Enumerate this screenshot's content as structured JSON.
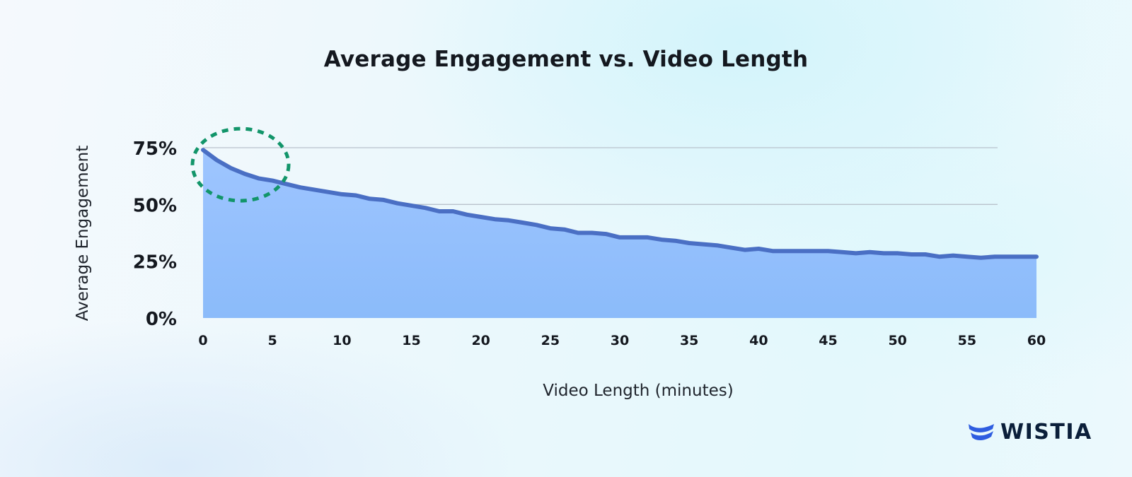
{
  "chart_data": {
    "type": "area",
    "title": "Average Engagement vs. Video Length",
    "xlabel": "Video Length (minutes)",
    "ylabel": "Average Engagement",
    "xlim": [
      0,
      60
    ],
    "ylim": [
      0,
      75
    ],
    "x_ticks": [
      0,
      5,
      10,
      15,
      20,
      25,
      30,
      35,
      40,
      45,
      50,
      55,
      60
    ],
    "y_ticks": [
      0,
      25,
      50,
      75
    ],
    "y_tick_labels": [
      "0%",
      "25%",
      "50%",
      "75%"
    ],
    "gridlines_at": [
      25,
      50,
      75
    ],
    "grid": true,
    "legend": "none",
    "series": [
      {
        "x": [
          0,
          1,
          2,
          3,
          4,
          5,
          6,
          7,
          8,
          9,
          10,
          11,
          12,
          13,
          14,
          15,
          16,
          17,
          18,
          19,
          20,
          21,
          22,
          23,
          24,
          25,
          26,
          27,
          28,
          29,
          30,
          31,
          32,
          33,
          34,
          35,
          36,
          37,
          38,
          39,
          40,
          41,
          42,
          43,
          44,
          45,
          46,
          47,
          48,
          49,
          50,
          51,
          52,
          53,
          54,
          55,
          56,
          57,
          58,
          59,
          60
        ],
        "values": [
          74,
          69.5,
          66,
          63.5,
          61.5,
          60.5,
          59,
          57.5,
          56.5,
          55.5,
          54.5,
          54,
          52.5,
          52,
          50.5,
          49.5,
          48.5,
          47,
          47,
          45.5,
          44.5,
          43.5,
          43,
          42,
          41,
          39.5,
          39,
          37.5,
          37.5,
          37,
          35.5,
          35.5,
          35.5,
          34.5,
          34,
          33,
          32.5,
          32,
          31,
          30,
          30.5,
          29.5,
          29.5,
          29.5,
          29.5,
          29.5,
          29,
          28.5,
          29,
          28.5,
          28.5,
          28,
          28,
          27,
          27.5,
          27,
          26.5,
          27,
          27,
          27,
          27
        ]
      }
    ],
    "highlight": {
      "shape": "dashed-circle",
      "x_center": 2.7,
      "y_center": 67.5
    },
    "colors": {
      "line": "#4a6fc4",
      "fill_top": "#9ec5ff",
      "fill_bottom": "#8bbbfa",
      "grid": "#b9c2cc",
      "highlight": "#12956a"
    }
  },
  "brand": {
    "logo_text": "WISTIA",
    "logo_icon": "wistia-wave-icon",
    "logo_color": "#2e5de0"
  }
}
